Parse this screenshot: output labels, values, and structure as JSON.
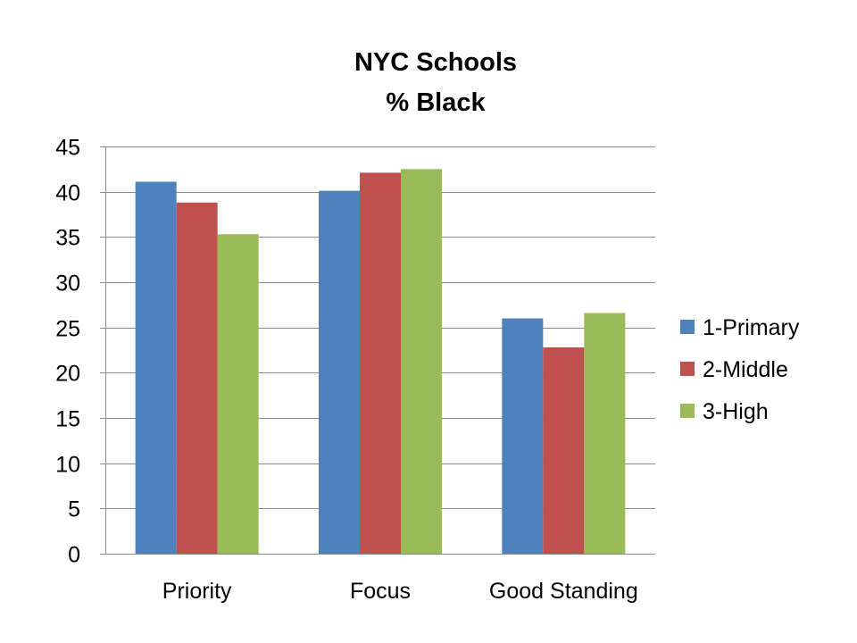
{
  "chart_data": {
    "type": "bar",
    "title": [
      "NYC Schools",
      "% Black"
    ],
    "xlabel": "",
    "ylabel": "",
    "categories": [
      "Priority",
      "Focus",
      "Good Standing"
    ],
    "series": [
      {
        "name": "1-Primary",
        "values": [
          41.1,
          40.1,
          26.0
        ],
        "color": "#4f81bd"
      },
      {
        "name": "2-Middle",
        "values": [
          38.8,
          42.1,
          22.8
        ],
        "color": "#c0504d"
      },
      {
        "name": "3-High",
        "values": [
          35.3,
          42.5,
          26.6
        ],
        "color": "#9bbb59"
      }
    ],
    "ylim": [
      0,
      45
    ],
    "yticks": [
      0,
      5,
      10,
      15,
      20,
      25,
      30,
      35,
      40,
      45
    ],
    "grid": true,
    "legend_position": "right"
  }
}
